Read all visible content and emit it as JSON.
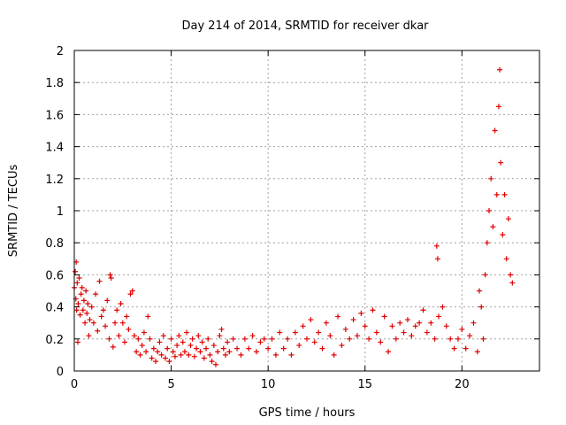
{
  "chart_data": {
    "type": "scatter",
    "title": "Day 214 of 2014, SRMTID for receiver dkar",
    "xlabel": "GPS time / hours",
    "ylabel": "SRMTID / TECUs",
    "xlim": [
      0,
      24
    ],
    "ylim": [
      0,
      2
    ],
    "xticks": [
      0,
      5,
      10,
      15,
      20
    ],
    "xtick_labels": [
      "0",
      "5",
      "10",
      "15",
      "20"
    ],
    "yticks": [
      0,
      0.2,
      0.4,
      0.6,
      0.8,
      1,
      1.2,
      1.4,
      1.6,
      1.8,
      2
    ],
    "ytick_labels": [
      "0",
      "0.2",
      "0.4",
      "0.6",
      "0.8",
      "1",
      "1.2",
      "1.4",
      "1.6",
      "1.8",
      "2"
    ],
    "grid": true,
    "marker": "+",
    "color": "#e00000",
    "series": [
      {
        "name": "SRMTID",
        "points": [
          [
            0.0,
            0.52
          ],
          [
            0.05,
            0.62
          ],
          [
            0.08,
            0.45
          ],
          [
            0.1,
            0.68
          ],
          [
            0.12,
            0.38
          ],
          [
            0.15,
            0.55
          ],
          [
            0.18,
            0.18
          ],
          [
            0.2,
            0.42
          ],
          [
            0.25,
            0.58
          ],
          [
            0.3,
            0.35
          ],
          [
            0.35,
            0.48
          ],
          [
            0.4,
            0.52
          ],
          [
            0.45,
            0.38
          ],
          [
            0.5,
            0.44
          ],
          [
            0.55,
            0.3
          ],
          [
            0.6,
            0.5
          ],
          [
            0.65,
            0.36
          ],
          [
            0.7,
            0.42
          ],
          [
            0.75,
            0.22
          ],
          [
            0.8,
            0.32
          ],
          [
            0.9,
            0.4
          ],
          [
            1.0,
            0.3
          ],
          [
            1.1,
            0.48
          ],
          [
            1.2,
            0.25
          ],
          [
            1.3,
            0.56
          ],
          [
            1.4,
            0.34
          ],
          [
            1.5,
            0.38
          ],
          [
            1.6,
            0.28
          ],
          [
            1.7,
            0.44
          ],
          [
            1.8,
            0.2
          ],
          [
            1.85,
            0.6
          ],
          [
            1.9,
            0.58
          ],
          [
            2.0,
            0.15
          ],
          [
            2.1,
            0.3
          ],
          [
            2.2,
            0.38
          ],
          [
            2.3,
            0.22
          ],
          [
            2.4,
            0.42
          ],
          [
            2.5,
            0.3
          ],
          [
            2.6,
            0.18
          ],
          [
            2.7,
            0.34
          ],
          [
            2.8,
            0.26
          ],
          [
            2.9,
            0.48
          ],
          [
            3.0,
            0.5
          ],
          [
            3.1,
            0.22
          ],
          [
            3.2,
            0.12
          ],
          [
            3.3,
            0.2
          ],
          [
            3.4,
            0.1
          ],
          [
            3.5,
            0.16
          ],
          [
            3.6,
            0.24
          ],
          [
            3.7,
            0.12
          ],
          [
            3.8,
            0.34
          ],
          [
            3.9,
            0.2
          ],
          [
            4.0,
            0.08
          ],
          [
            4.1,
            0.14
          ],
          [
            4.2,
            0.06
          ],
          [
            4.3,
            0.12
          ],
          [
            4.4,
            0.18
          ],
          [
            4.5,
            0.1
          ],
          [
            4.6,
            0.22
          ],
          [
            4.7,
            0.08
          ],
          [
            4.8,
            0.14
          ],
          [
            4.9,
            0.06
          ],
          [
            5.0,
            0.2
          ],
          [
            5.1,
            0.12
          ],
          [
            5.2,
            0.09
          ],
          [
            5.3,
            0.16
          ],
          [
            5.4,
            0.22
          ],
          [
            5.5,
            0.1
          ],
          [
            5.6,
            0.18
          ],
          [
            5.7,
            0.12
          ],
          [
            5.8,
            0.24
          ],
          [
            5.9,
            0.1
          ],
          [
            6.0,
            0.16
          ],
          [
            6.1,
            0.2
          ],
          [
            6.2,
            0.09
          ],
          [
            6.3,
            0.14
          ],
          [
            6.4,
            0.22
          ],
          [
            6.5,
            0.12
          ],
          [
            6.6,
            0.18
          ],
          [
            6.7,
            0.08
          ],
          [
            6.8,
            0.14
          ],
          [
            6.9,
            0.2
          ],
          [
            7.0,
            0.1
          ],
          [
            7.1,
            0.06
          ],
          [
            7.2,
            0.16
          ],
          [
            7.3,
            0.04
          ],
          [
            7.4,
            0.12
          ],
          [
            7.5,
            0.22
          ],
          [
            7.6,
            0.26
          ],
          [
            7.7,
            0.14
          ],
          [
            7.8,
            0.1
          ],
          [
            7.9,
            0.18
          ],
          [
            8.0,
            0.12
          ],
          [
            8.2,
            0.2
          ],
          [
            8.4,
            0.14
          ],
          [
            8.6,
            0.1
          ],
          [
            8.8,
            0.2
          ],
          [
            9.0,
            0.14
          ],
          [
            9.2,
            0.22
          ],
          [
            9.4,
            0.12
          ],
          [
            9.6,
            0.18
          ],
          [
            9.8,
            0.2
          ],
          [
            10.0,
            0.14
          ],
          [
            10.2,
            0.2
          ],
          [
            10.4,
            0.1
          ],
          [
            10.6,
            0.24
          ],
          [
            10.8,
            0.14
          ],
          [
            11.0,
            0.2
          ],
          [
            11.2,
            0.1
          ],
          [
            11.4,
            0.24
          ],
          [
            11.6,
            0.16
          ],
          [
            11.8,
            0.28
          ],
          [
            12.0,
            0.2
          ],
          [
            12.2,
            0.32
          ],
          [
            12.4,
            0.18
          ],
          [
            12.6,
            0.24
          ],
          [
            12.8,
            0.14
          ],
          [
            13.0,
            0.3
          ],
          [
            13.2,
            0.22
          ],
          [
            13.4,
            0.1
          ],
          [
            13.6,
            0.34
          ],
          [
            13.8,
            0.16
          ],
          [
            14.0,
            0.26
          ],
          [
            14.2,
            0.2
          ],
          [
            14.4,
            0.32
          ],
          [
            14.6,
            0.22
          ],
          [
            14.8,
            0.36
          ],
          [
            15.0,
            0.28
          ],
          [
            15.2,
            0.2
          ],
          [
            15.4,
            0.38
          ],
          [
            15.6,
            0.24
          ],
          [
            15.8,
            0.18
          ],
          [
            16.0,
            0.34
          ],
          [
            16.2,
            0.12
          ],
          [
            16.4,
            0.28
          ],
          [
            16.6,
            0.2
          ],
          [
            16.8,
            0.3
          ],
          [
            17.0,
            0.24
          ],
          [
            17.2,
            0.32
          ],
          [
            17.4,
            0.22
          ],
          [
            17.6,
            0.28
          ],
          [
            17.8,
            0.3
          ],
          [
            18.0,
            0.38
          ],
          [
            18.2,
            0.24
          ],
          [
            18.4,
            0.3
          ],
          [
            18.6,
            0.2
          ],
          [
            18.7,
            0.78
          ],
          [
            18.75,
            0.7
          ],
          [
            18.8,
            0.34
          ],
          [
            19.0,
            0.4
          ],
          [
            19.2,
            0.28
          ],
          [
            19.4,
            0.2
          ],
          [
            19.6,
            0.14
          ],
          [
            19.8,
            0.2
          ],
          [
            20.0,
            0.26
          ],
          [
            20.2,
            0.14
          ],
          [
            20.4,
            0.22
          ],
          [
            20.6,
            0.3
          ],
          [
            20.8,
            0.12
          ],
          [
            20.9,
            0.5
          ],
          [
            21.0,
            0.4
          ],
          [
            21.1,
            0.2
          ],
          [
            21.2,
            0.6
          ],
          [
            21.3,
            0.8
          ],
          [
            21.4,
            1.0
          ],
          [
            21.5,
            1.2
          ],
          [
            21.6,
            0.9
          ],
          [
            21.7,
            1.5
          ],
          [
            21.8,
            1.1
          ],
          [
            21.9,
            1.65
          ],
          [
            21.95,
            1.88
          ],
          [
            22.0,
            1.3
          ],
          [
            22.1,
            0.85
          ],
          [
            22.2,
            1.1
          ],
          [
            22.3,
            0.7
          ],
          [
            22.4,
            0.95
          ],
          [
            22.5,
            0.6
          ],
          [
            22.6,
            0.55
          ]
        ]
      }
    ]
  }
}
